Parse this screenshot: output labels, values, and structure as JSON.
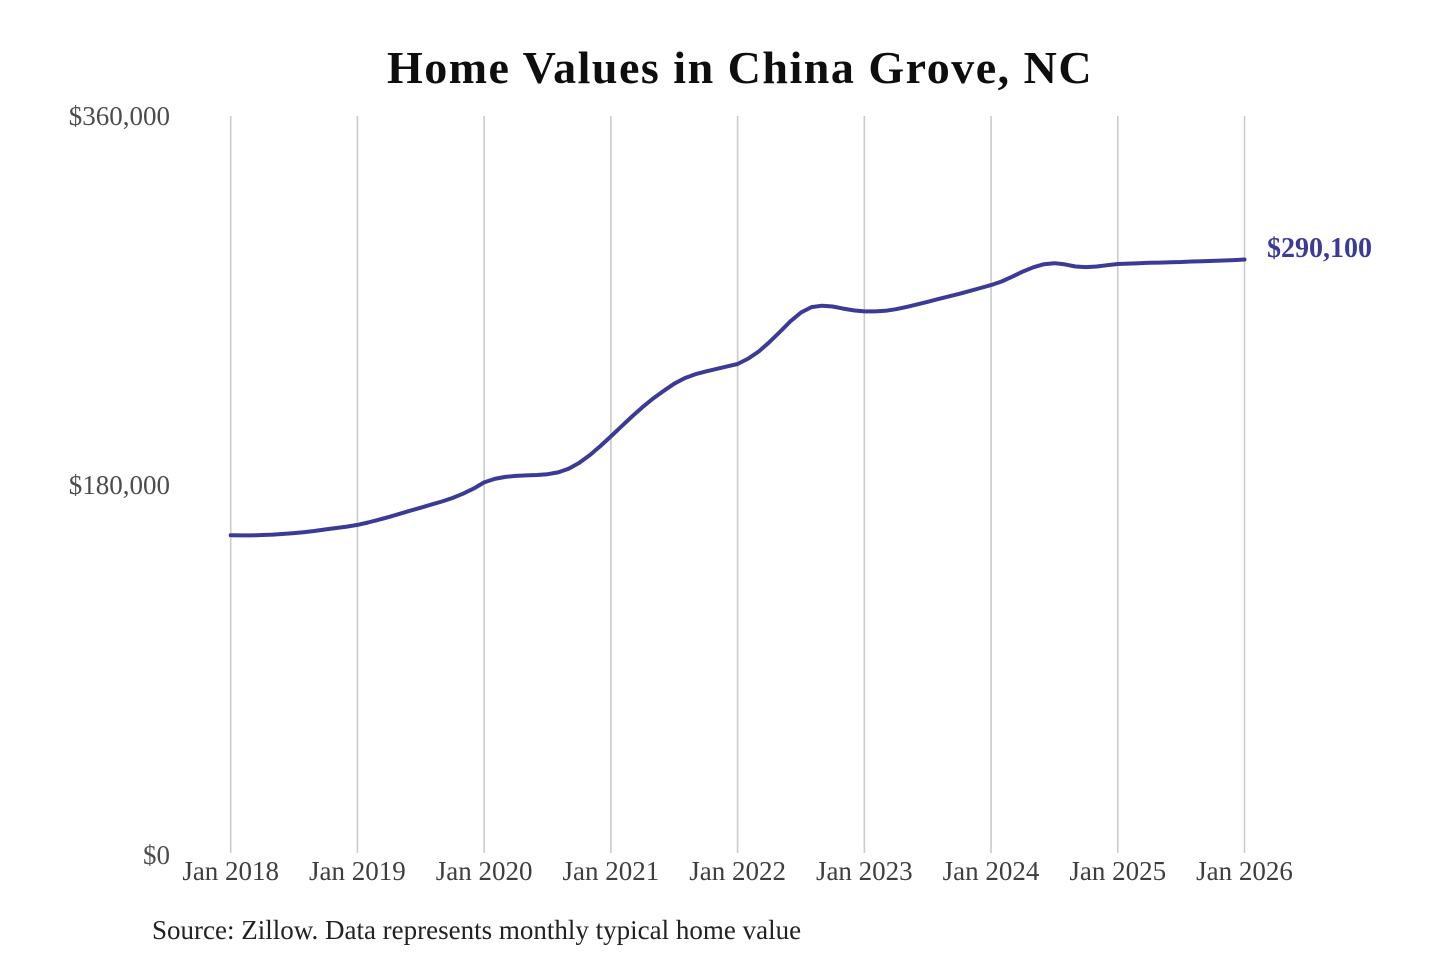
{
  "title": "Home Values in China Grove, NC",
  "source_note": "Source: Zillow. Data represents monthly typical home value",
  "end_label": "$290,100",
  "colors": {
    "line": "#3b3a96",
    "grid": "#cbcbcb",
    "title_text": "#0e0e0e",
    "y_axis_text": "#4c4c4c",
    "x_axis_text": "#3e3e3e",
    "source_text": "#222222"
  },
  "chart_data": {
    "type": "line",
    "title": "Home Values in China Grove, NC",
    "xlabel": "",
    "ylabel": "",
    "ylim": [
      0,
      360000
    ],
    "grid": "vertical-only",
    "x_start": "2018-01",
    "x_end": "2026-01",
    "frequency": "monthly",
    "x_tick_labels": [
      "Jan 2018",
      "Jan 2019",
      "Jan 2020",
      "Jan 2021",
      "Jan 2022",
      "Jan 2023",
      "Jan 2024",
      "Jan 2025",
      "Jan 2026"
    ],
    "y_ticks": [
      {
        "value": 0,
        "label": "$0"
      },
      {
        "value": 180000,
        "label": "$180,000"
      },
      {
        "value": 360000,
        "label": "$360,000"
      }
    ],
    "end_annotation": "$290,100",
    "series": [
      {
        "name": "Monthly typical home value",
        "values": [
          155800,
          155700,
          155700,
          155900,
          156100,
          156400,
          156800,
          157300,
          157900,
          158600,
          159300,
          160000,
          160800,
          162000,
          163300,
          164700,
          166200,
          167700,
          169200,
          170700,
          172200,
          173900,
          176000,
          178500,
          181500,
          183200,
          184200,
          184700,
          184900,
          185100,
          185500,
          186400,
          188200,
          191000,
          194800,
          199200,
          203900,
          208800,
          213600,
          218200,
          222400,
          226100,
          229600,
          232300,
          234200,
          235600,
          236800,
          238000,
          239200,
          241800,
          245300,
          249800,
          254800,
          260000,
          264300,
          266900,
          267600,
          267200,
          266200,
          265300,
          264800,
          264800,
          265100,
          265900,
          267000,
          268200,
          269500,
          270800,
          272100,
          273400,
          274800,
          276200,
          277600,
          279400,
          281700,
          284200,
          286300,
          287800,
          288300,
          287700,
          286700,
          286400,
          286700,
          287300,
          287900,
          288100,
          288300,
          288500,
          288600,
          288800,
          288900,
          289100,
          289200,
          289400,
          289600,
          289800,
          290100
        ]
      }
    ]
  }
}
